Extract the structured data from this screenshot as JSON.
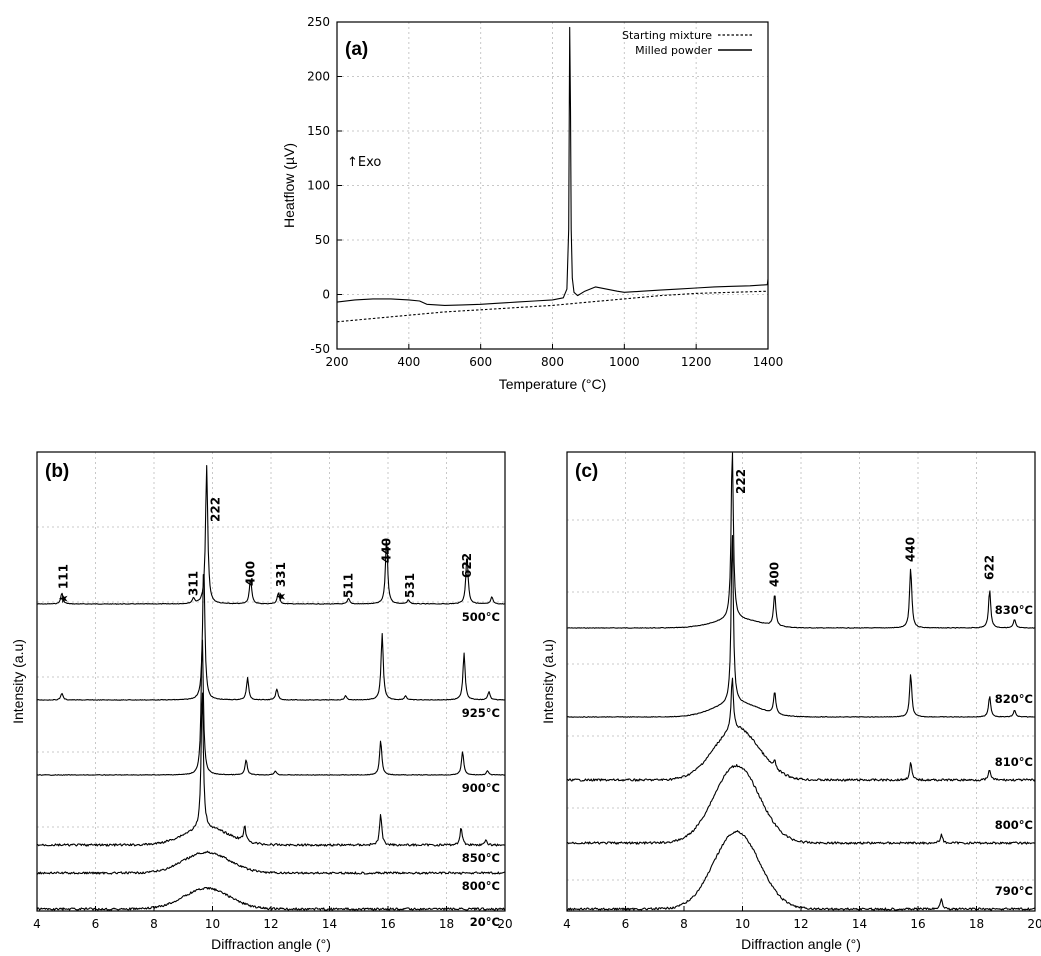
{
  "chart_data": [
    {
      "id": "a",
      "type": "line",
      "panel_label": "(a)",
      "xlabel": "Temperature (°C)",
      "ylabel": "Heatflow (µV)",
      "xlim": [
        200,
        1400
      ],
      "ylim": [
        -50,
        250
      ],
      "xticks": [
        "200",
        "400",
        "600",
        "800",
        "1000",
        "1200",
        "1400"
      ],
      "yticks": [
        "-50",
        "0",
        "50",
        "100",
        "150",
        "200",
        "250"
      ],
      "grid": true,
      "legend_position": "top-right",
      "annotation": "↑Exo",
      "series": [
        {
          "name": "Starting mixture",
          "style": "dashed",
          "x": [
            200,
            300,
            400,
            500,
            600,
            700,
            800,
            900,
            1000,
            1100,
            1200,
            1300,
            1400
          ],
          "y": [
            -25,
            -22,
            -19,
            -16,
            -14,
            -12,
            -10,
            -7,
            -4,
            -1,
            1,
            2,
            3
          ]
        },
        {
          "name": "Milled powder",
          "style": "solid",
          "x": [
            200,
            250,
            300,
            350,
            400,
            430,
            450,
            500,
            550,
            600,
            650,
            700,
            750,
            800,
            830,
            840,
            845,
            848,
            850,
            852,
            855,
            860,
            870,
            890,
            920,
            950,
            980,
            1000,
            1050,
            1100,
            1150,
            1200,
            1250,
            1300,
            1350,
            1398,
            1400
          ],
          "y": [
            -7,
            -5,
            -4,
            -4,
            -5,
            -6,
            -9,
            -10,
            -9.5,
            -9,
            -8,
            -7,
            -6,
            -5,
            -3,
            5,
            60,
            245,
            170,
            60,
            15,
            2,
            -1,
            3,
            7,
            5,
            3,
            2,
            3,
            4,
            5,
            6,
            7,
            7.5,
            8,
            9,
            14
          ]
        }
      ]
    },
    {
      "id": "b",
      "type": "line",
      "panel_label": "(b)",
      "xlabel": "Diffraction angle (°)",
      "ylabel": "Intensity (a.u)",
      "xlim": [
        4,
        20
      ],
      "xticks": [
        "4",
        "6",
        "8",
        "10",
        "12",
        "14",
        "16",
        "18",
        "20"
      ],
      "grid": true,
      "series": [
        {
          "name": "500°C",
          "peaks": [
            [
              4.85,
              0.08
            ],
            [
              9.35,
              0.04
            ],
            [
              9.8,
              1.0
            ],
            [
              11.3,
              0.19
            ],
            [
              12.25,
              0.08
            ],
            [
              14.65,
              0.04
            ],
            [
              15.95,
              0.48
            ],
            [
              16.7,
              0.03
            ],
            [
              18.7,
              0.36
            ],
            [
              19.55,
              0.05
            ]
          ],
          "hump": 0
        },
        {
          "name": "925°C",
          "peaks": [
            [
              4.85,
              0.05
            ],
            [
              9.7,
              1.0
            ],
            [
              11.2,
              0.16
            ],
            [
              12.2,
              0.08
            ],
            [
              14.55,
              0.03
            ],
            [
              15.8,
              0.48
            ],
            [
              16.6,
              0.03
            ],
            [
              18.6,
              0.34
            ],
            [
              19.45,
              0.06
            ]
          ],
          "hump": 0
        },
        {
          "name": "900°C",
          "peaks": [
            [
              9.65,
              1.0
            ],
            [
              11.15,
              0.11
            ],
            [
              12.15,
              0.03
            ],
            [
              15.75,
              0.25
            ],
            [
              18.55,
              0.17
            ],
            [
              19.4,
              0.03
            ]
          ],
          "hump": 0
        },
        {
          "name": "850°C",
          "peaks": [
            [
              9.65,
              1.0
            ],
            [
              11.1,
              0.11
            ],
            [
              15.75,
              0.22
            ],
            [
              18.5,
              0.13
            ],
            [
              19.35,
              0.03
            ]
          ],
          "hump": 0.12
        },
        {
          "name": "800°C",
          "peaks": [],
          "hump": 0.15
        },
        {
          "name": "20°C",
          "peaks": [],
          "hump": 0.15
        }
      ],
      "peak_labels": [
        {
          "text": "111",
          "star": true,
          "x": 4.9
        },
        {
          "text": "311",
          "star": false,
          "x": 9.35
        },
        {
          "text": "222",
          "star": false,
          "x": 10.1
        },
        {
          "text": "400",
          "star": false,
          "x": 11.3
        },
        {
          "text": "331",
          "star": true,
          "x": 12.35
        },
        {
          "text": "511",
          "star": false,
          "x": 14.65
        },
        {
          "text": "440",
          "star": false,
          "x": 15.95
        },
        {
          "text": "531",
          "star": false,
          "x": 16.75
        },
        {
          "text": "622",
          "star": false,
          "x": 18.7
        }
      ]
    },
    {
      "id": "c",
      "type": "line",
      "panel_label": "(c)",
      "xlabel": "Diffraction angle (°)",
      "ylabel": "Intensity (a.u)",
      "xlim": [
        4,
        20
      ],
      "xticks": [
        "4",
        "6",
        "8",
        "10",
        "12",
        "14",
        "16",
        "18",
        "20"
      ],
      "grid": true,
      "series": [
        {
          "name": "830°C",
          "peaks": [
            [
              9.65,
              1.0
            ],
            [
              11.1,
              0.19
            ],
            [
              15.75,
              0.35
            ],
            [
              18.45,
              0.22
            ],
            [
              19.3,
              0.05
            ]
          ],
          "hump": 0.05
        },
        {
          "name": "820°C",
          "peaks": [
            [
              9.65,
              1.0
            ],
            [
              11.1,
              0.13
            ],
            [
              15.75,
              0.25
            ],
            [
              18.45,
              0.12
            ],
            [
              19.3,
              0.04
            ]
          ],
          "hump": 0.08
        },
        {
          "name": "810°C",
          "peaks": [
            [
              9.65,
              0.3
            ],
            [
              11.1,
              0.04
            ],
            [
              15.75,
              0.1
            ],
            [
              18.45,
              0.06
            ]
          ],
          "hump": 0.3
        },
        {
          "name": "800°C",
          "peaks": [
            [
              16.8,
              0.05
            ]
          ],
          "hump": 0.45
        },
        {
          "name": "790°C",
          "peaks": [
            [
              16.8,
              0.06
            ]
          ],
          "hump": 0.45
        }
      ],
      "peak_labels": [
        {
          "text": "222",
          "star": false,
          "x": 9.95
        },
        {
          "text": "400",
          "star": false,
          "x": 11.1
        },
        {
          "text": "440",
          "star": false,
          "x": 15.75
        },
        {
          "text": "622",
          "star": false,
          "x": 18.45
        }
      ]
    }
  ]
}
